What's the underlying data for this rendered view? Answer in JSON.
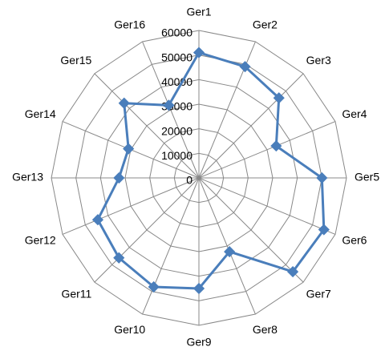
{
  "chart_data": {
    "type": "radar",
    "categories": [
      "Ger1",
      "Ger2",
      "Ger3",
      "Ger4",
      "Ger5",
      "Ger6",
      "Ger7",
      "Ger8",
      "Ger9",
      "Ger10",
      "Ger11",
      "Ger12",
      "Ger13",
      "Ger14",
      "Ger15",
      "Ger16"
    ],
    "series": [
      {
        "color": "#4a7ebb",
        "values": [
          51000,
          49000,
          46000,
          34000,
          50000,
          55000,
          54000,
          32500,
          45000,
          48000,
          46000,
          44500,
          32500,
          31000,
          43000,
          32000
        ]
      }
    ],
    "ylim": [
      0,
      60000
    ],
    "yticks": [
      0,
      10000,
      20000,
      30000,
      40000,
      50000,
      60000
    ],
    "grid": true
  }
}
